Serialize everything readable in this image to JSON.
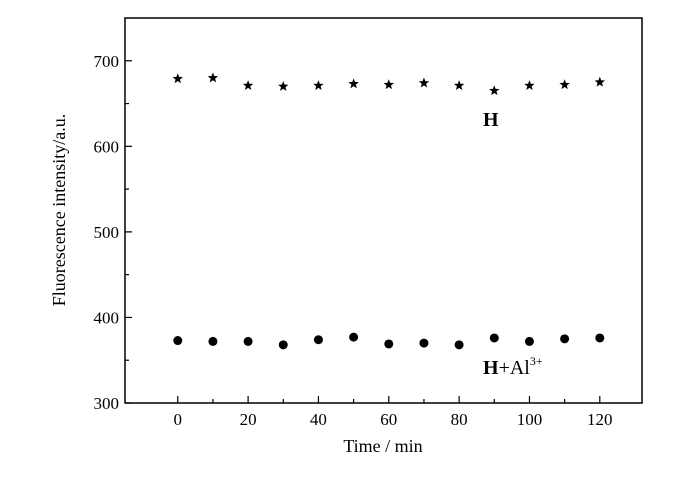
{
  "chart_data": {
    "type": "scatter",
    "xlabel": "Time / min",
    "ylabel": "Fluorescence intensity/a.u.",
    "xlim": [
      -15,
      132
    ],
    "ylim": [
      300,
      750
    ],
    "xticks": [
      0,
      20,
      40,
      60,
      80,
      100,
      120
    ],
    "yticks": [
      300,
      400,
      500,
      600,
      700
    ],
    "grid": false,
    "x": [
      0,
      10,
      20,
      30,
      40,
      50,
      60,
      70,
      80,
      90,
      100,
      110,
      120
    ],
    "series": [
      {
        "marker": "star",
        "label_main": "H",
        "label_suffix": "",
        "label_sup": "",
        "values": [
          679,
          680,
          671,
          670,
          671,
          673,
          672,
          674,
          671,
          665,
          671,
          672,
          675
        ]
      },
      {
        "marker": "circle",
        "label_main": "H",
        "label_suffix": "+Al",
        "label_sup": "3+",
        "values": [
          373,
          372,
          372,
          368,
          374,
          377,
          369,
          370,
          368,
          376,
          372,
          375,
          376
        ]
      }
    ]
  }
}
